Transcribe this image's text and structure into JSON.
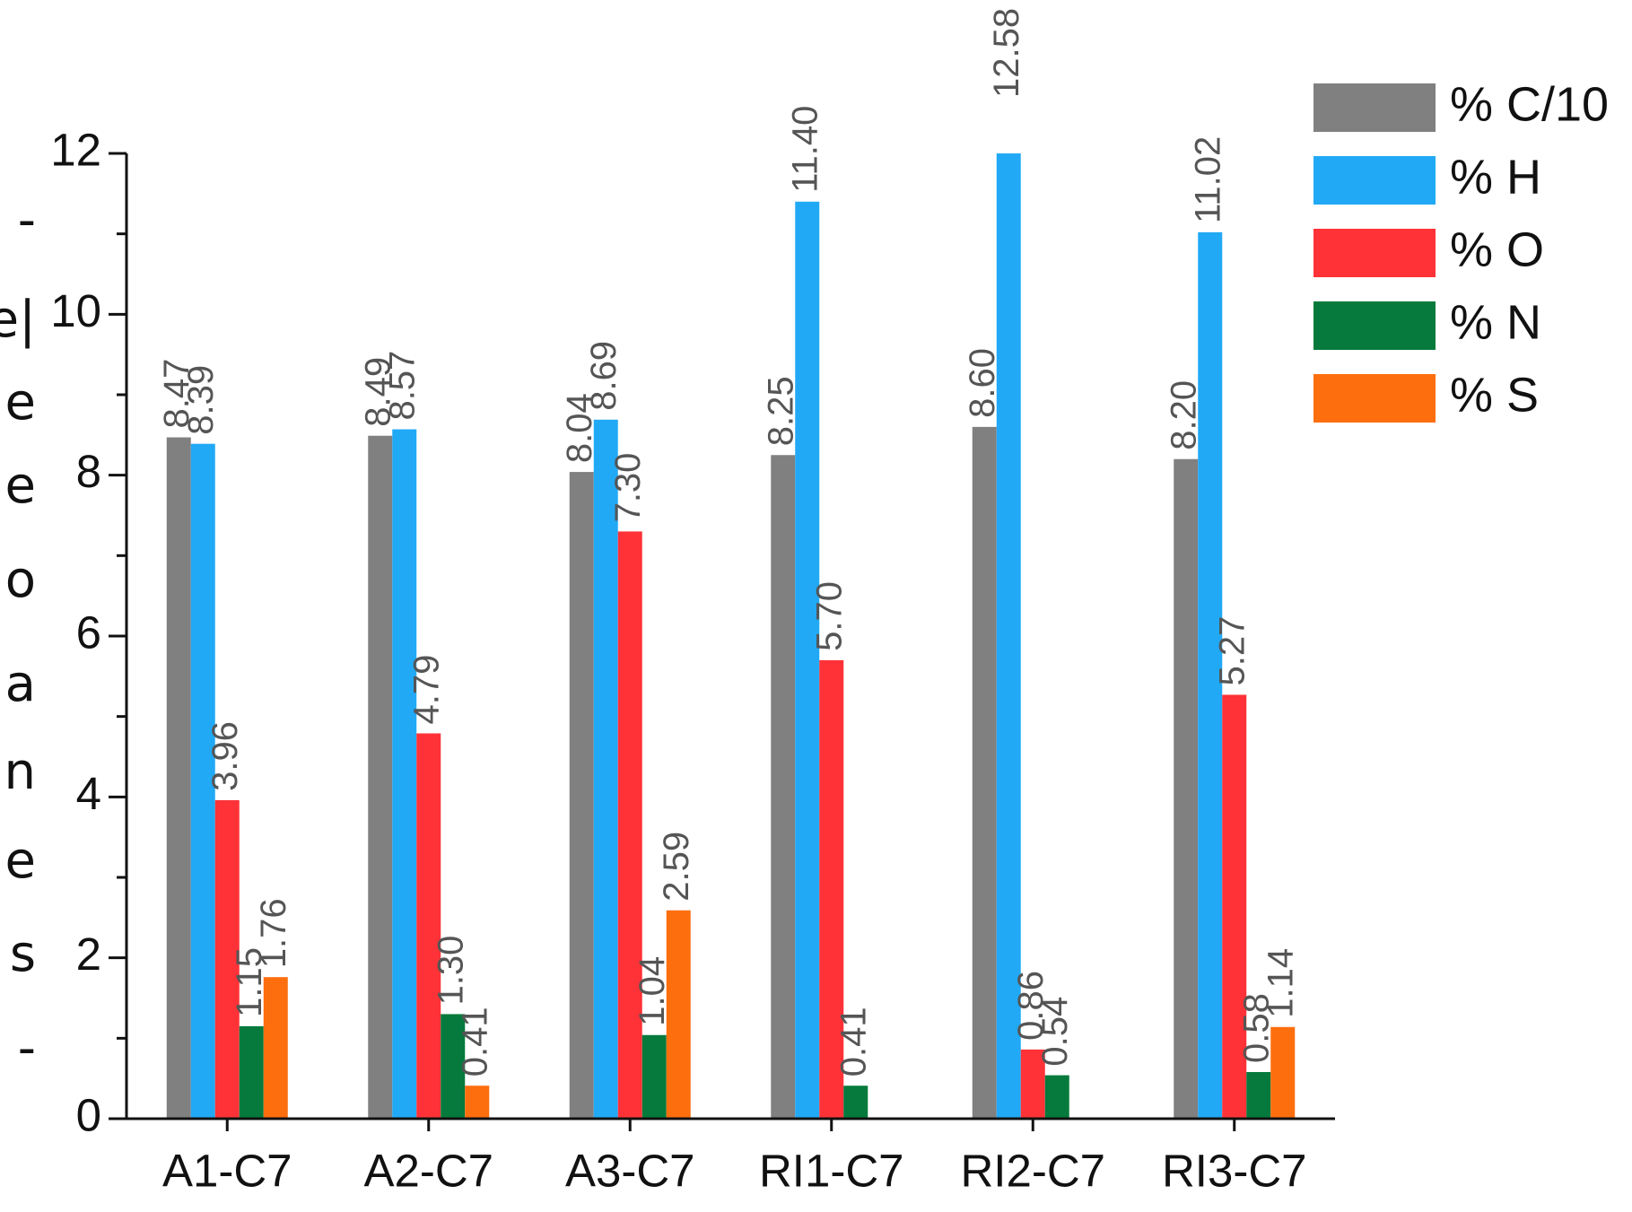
{
  "margin_text": [
    "-",
    "e|",
    "e",
    "e",
    "o",
    "a",
    "n",
    "e",
    "s",
    "-"
  ],
  "chart_data": {
    "type": "bar",
    "categories": [
      "A1-C7",
      "A2-C7",
      "A3-C7",
      "RI1-C7",
      "RI2-C7",
      "RI3-C7"
    ],
    "series": [
      {
        "name": "% C/10",
        "color": "#808080",
        "values": [
          8.47,
          8.49,
          8.04,
          8.25,
          8.6,
          8.2
        ],
        "value_labels": [
          "8.47",
          "8.49",
          "8.04",
          "8.25",
          "8.60",
          "8.20"
        ]
      },
      {
        "name": "% H",
        "color": "#21a9f5",
        "values": [
          8.39,
          8.57,
          8.69,
          11.4,
          12.58,
          11.02
        ],
        "value_labels": [
          "8.39",
          "8.57",
          "8.69",
          "11.40",
          "12.58",
          "11.02"
        ]
      },
      {
        "name": "% O",
        "color": "#fe3237",
        "values": [
          3.96,
          4.79,
          7.3,
          5.7,
          0.86,
          5.27
        ],
        "value_labels": [
          "3.96",
          "4.79",
          "7.30",
          "5.70",
          "0.86",
          "5.27"
        ]
      },
      {
        "name": "% N",
        "color": "#057a3c",
        "values": [
          1.15,
          1.3,
          1.04,
          0.41,
          0.54,
          0.58
        ],
        "value_labels": [
          "1.15",
          "1.30",
          "1.04",
          "0.41",
          "0.54",
          "0.58"
        ]
      },
      {
        "name": "% S",
        "color": "#fd6e0e",
        "values": [
          1.76,
          0.41,
          2.59,
          null,
          null,
          1.14
        ],
        "value_labels": [
          "1.76",
          "0.41",
          "2.59",
          null,
          null,
          "1.14"
        ]
      }
    ],
    "ylim": [
      0,
      12
    ],
    "yticks": [
      0,
      2,
      4,
      6,
      8,
      10,
      12
    ],
    "minor_yticks": [
      1,
      3,
      5,
      7,
      9,
      11
    ],
    "legend": "upper right"
  }
}
